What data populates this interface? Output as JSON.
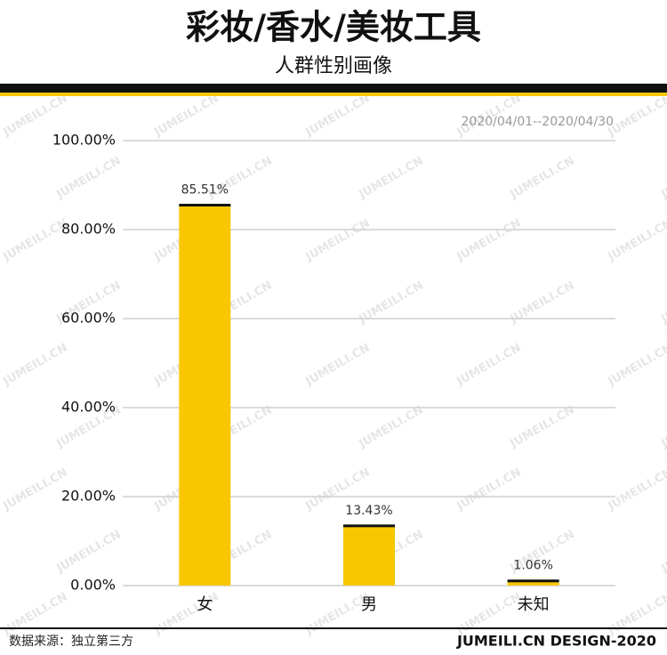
{
  "chart_data": {
    "type": "bar",
    "title": "彩妆/香水/美妆工具",
    "subtitle": "人群性别画像",
    "date_range": "2020/04/01--2020/04/30",
    "categories": [
      "女",
      "男",
      "未知"
    ],
    "values": [
      85.51,
      13.43,
      1.06
    ],
    "value_labels": [
      "85.51%",
      "13.43%",
      "1.06%"
    ],
    "color": "#f9c700",
    "ylim": [
      0,
      100
    ],
    "yticks": [
      {
        "value": 0,
        "label": "0.00%"
      },
      {
        "value": 20,
        "label": "20.00%"
      },
      {
        "value": 40,
        "label": "40.00%"
      },
      {
        "value": 60,
        "label": "60.00%"
      },
      {
        "value": 80,
        "label": "80.00%"
      },
      {
        "value": 100,
        "label": "100.00%"
      }
    ],
    "grid": true,
    "watermark": "JUMEILI.CN",
    "source": "数据来源：独立第三方",
    "brand": "JUMEILI.CN DESIGN-2020"
  }
}
